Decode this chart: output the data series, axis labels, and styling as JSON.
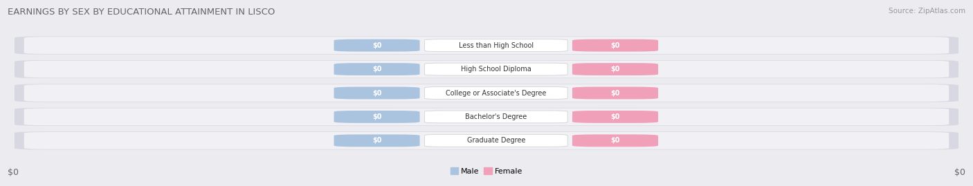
{
  "title": "EARNINGS BY SEX BY EDUCATIONAL ATTAINMENT IN LISCO",
  "source": "Source: ZipAtlas.com",
  "categories": [
    "Less than High School",
    "High School Diploma",
    "College or Associate's Degree",
    "Bachelor's Degree",
    "Graduate Degree"
  ],
  "male_color": "#aac4e0",
  "female_color": "#f0a0b8",
  "male_label": "Male",
  "female_label": "Female",
  "bar_label": "$0",
  "xlim_label_left": "$0",
  "xlim_label_right": "$0",
  "background_color": "#ebebf0",
  "row_bg_outer": "#d8d8e2",
  "row_bg_inner": "#f0f0f5",
  "title_color": "#666666",
  "source_color": "#999999",
  "tick_color": "#666666",
  "title_fontsize": 9.5,
  "source_fontsize": 7.5,
  "bar_label_fontsize": 7,
  "cat_label_fontsize": 7,
  "tick_fontsize": 9,
  "legend_fontsize": 8
}
